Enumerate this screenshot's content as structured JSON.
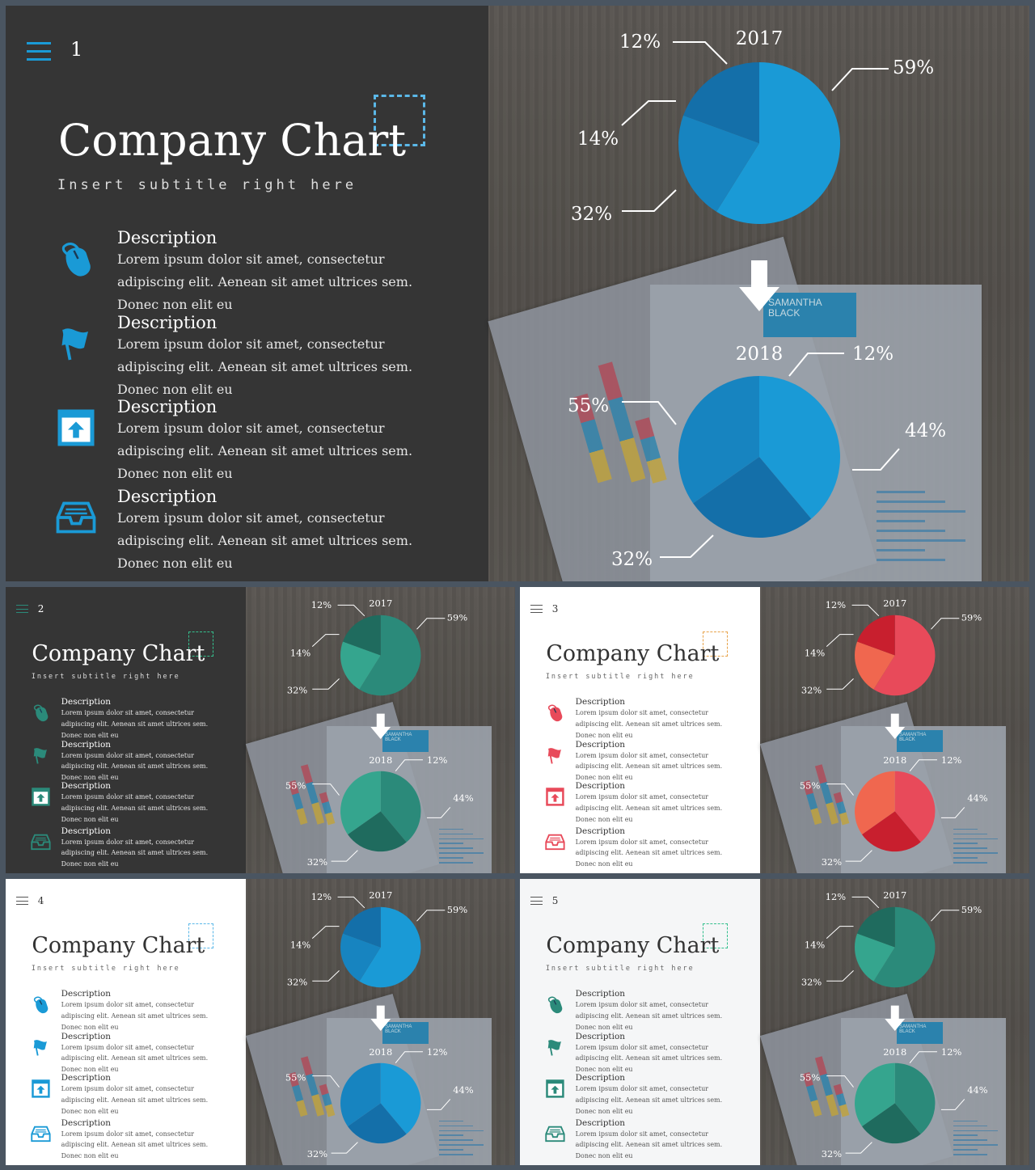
{
  "colors": {
    "blue": "#1a9ad6",
    "blue_mid": "#1784c0",
    "blue_dark": "#146fa9",
    "teal": "#2b8a7a",
    "teal_light": "#35a58e",
    "teal_dark": "#1f6b5e",
    "red": "#e84a5a",
    "red_light": "#f0674f",
    "red_dark": "#c81f2e",
    "dark_bg": "#353535",
    "white_bg": "#ffffff"
  },
  "content": {
    "title": "Company Chart",
    "subtitle": "Insert subtitle right here",
    "items": [
      {
        "icon": "mouse-icon",
        "heading": "Description",
        "line1": "Lorem ipsum dolor sit amet, consectetur",
        "line2": "adipiscing elit. Aenean sit amet ultrices sem.",
        "line3": "Donec non elit eu"
      },
      {
        "icon": "flag-icon",
        "heading": "Description",
        "line1": "Lorem ipsum dolor sit amet, consectetur",
        "line2": "adipiscing elit. Aenean sit amet ultrices sem.",
        "line3": "Donec non elit eu"
      },
      {
        "icon": "upload-window-icon",
        "heading": "Description",
        "line1": "Lorem ipsum dolor sit amet, consectetur",
        "line2": "adipiscing elit. Aenean sit amet ultrices sem.",
        "line3": "Donec non elit eu"
      },
      {
        "icon": "inbox-tray-icon",
        "heading": "Description",
        "line1": "Lorem ipsum dolor sit amet, consectetur",
        "line2": "adipiscing elit. Aenean sit amet ultrices sem.",
        "line3": "Donec non elit eu"
      }
    ]
  },
  "chart_data": [
    {
      "type": "pie",
      "title": "2017",
      "categories": [
        "59%",
        "12%",
        "14%",
        "32%"
      ],
      "labels": [
        "59%",
        "12%",
        "14%",
        "32%"
      ],
      "values": [
        59,
        12,
        14,
        32
      ]
    },
    {
      "type": "pie",
      "title": "2018",
      "categories": [
        "12%",
        "44%",
        "32%",
        "55%"
      ],
      "labels": [
        "12%",
        "44%",
        "32%",
        "55%"
      ],
      "values": [
        12,
        44,
        32,
        55
      ]
    }
  ],
  "slides": [
    {
      "number": "1",
      "theme": "dark",
      "accent": "blue"
    },
    {
      "number": "2",
      "theme": "dark",
      "accent": "teal"
    },
    {
      "number": "3",
      "theme": "light",
      "accent": "red"
    },
    {
      "number": "4",
      "theme": "light",
      "accent": "blue"
    },
    {
      "number": "5",
      "theme": "light",
      "accent": "teal"
    }
  ],
  "resume_card": {
    "line1": "SAMANTHA",
    "line2": "BLACK"
  }
}
